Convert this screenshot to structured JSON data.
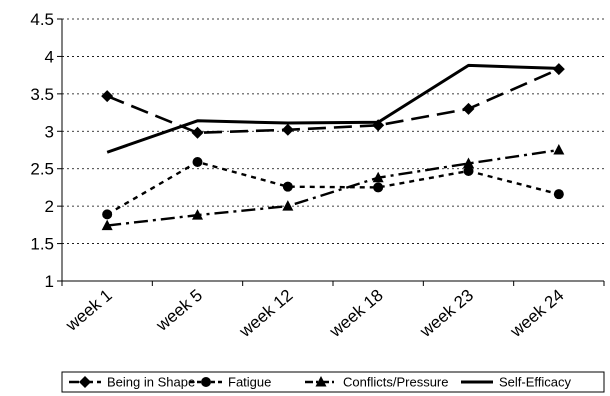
{
  "chart_data": {
    "type": "line",
    "title": "",
    "xlabel": "",
    "ylabel": "",
    "categories": [
      "week 1",
      "week 5",
      "week 12",
      "week 18",
      "week 23",
      "week 24"
    ],
    "ylim": [
      1,
      4.5
    ],
    "yticks": [
      "1",
      "1.5",
      "2",
      "2.5",
      "3",
      "3.5",
      "4",
      "4.5"
    ],
    "grid": "horizontal dashed",
    "legend": "bottom",
    "series": [
      {
        "name": "Being in Shape",
        "values": [
          3.47,
          2.98,
          3.02,
          3.08,
          3.3,
          3.83
        ],
        "marker": "diamond",
        "dash": "long-dash"
      },
      {
        "name": "Fatigue",
        "values": [
          1.89,
          2.59,
          2.26,
          2.25,
          2.47,
          2.16
        ],
        "marker": "circle",
        "dash": "short-dash"
      },
      {
        "name": "Conflicts/Pressure",
        "values": [
          1.74,
          1.88,
          2.0,
          2.38,
          2.57,
          2.75
        ],
        "marker": "triangle",
        "dash": "dash-dot"
      },
      {
        "name": "Self-Efficacy",
        "values": [
          2.72,
          3.14,
          3.11,
          3.12,
          3.88,
          3.84
        ],
        "marker": "none",
        "dash": "solid"
      }
    ]
  }
}
